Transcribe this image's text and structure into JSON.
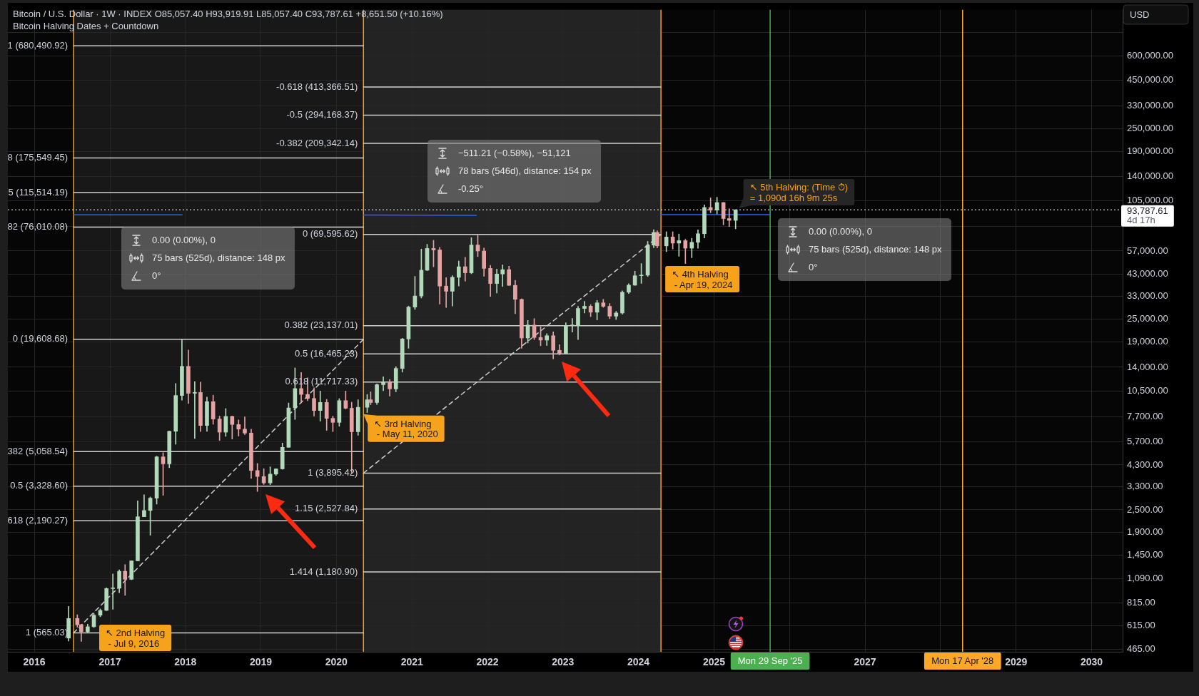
{
  "chart_data": {
    "type": "candlestick",
    "title": "Bitcoin / U.S. Dollar · 1W · INDEX O85,057.40 H93,919.91 L85,057.40 C93,787.61 +8,651.50 (+10.16%)",
    "subtitle": "Bitcoin Halving Dates + Countdown",
    "ylabel": "USD",
    "x": [
      "2016-06-15",
      "2016-07-27",
      "2016-08-15",
      "2016-09-15",
      "2016-10-15",
      "2016-11-15",
      "2016-12-15",
      "2017-01-15",
      "2017-02-15",
      "2017-03-15",
      "2017-04-15",
      "2017-05-15",
      "2017-06-15",
      "2017-07-15",
      "2017-08-15",
      "2017-09-15",
      "2017-10-15",
      "2017-11-15",
      "2017-12-15",
      "2018-01-15",
      "2018-02-15",
      "2018-03-15",
      "2018-04-15",
      "2018-05-15",
      "2018-06-15",
      "2018-07-15",
      "2018-08-15",
      "2018-09-15",
      "2018-10-15",
      "2018-11-15",
      "2018-12-15",
      "2019-01-15",
      "2019-02-15",
      "2019-03-15",
      "2019-04-15",
      "2019-05-15",
      "2019-06-15",
      "2019-07-15",
      "2019-08-15",
      "2019-09-15",
      "2019-10-15",
      "2019-11-15",
      "2019-12-15",
      "2020-01-15",
      "2020-02-15",
      "2020-03-15",
      "2020-04-15",
      "2020-05-29",
      "2020-06-15",
      "2020-07-15",
      "2020-08-15",
      "2020-09-15",
      "2020-10-15",
      "2020-11-15",
      "2020-12-15",
      "2021-01-15",
      "2021-02-15",
      "2021-03-15",
      "2021-04-15",
      "2021-05-15",
      "2021-06-15",
      "2021-07-15",
      "2021-08-15",
      "2021-09-15",
      "2021-10-15",
      "2021-11-15",
      "2021-12-15",
      "2022-01-15",
      "2022-02-15",
      "2022-03-15",
      "2022-04-15",
      "2022-05-15",
      "2022-06-15",
      "2022-07-15",
      "2022-08-15",
      "2022-09-15",
      "2022-10-15",
      "2022-11-15",
      "2022-12-15",
      "2023-01-15",
      "2023-02-15",
      "2023-03-15",
      "2023-04-15",
      "2023-05-15",
      "2023-06-15",
      "2023-07-15",
      "2023-08-15",
      "2023-09-15",
      "2023-10-15",
      "2023-11-15",
      "2023-12-15",
      "2024-01-15",
      "2024-02-15",
      "2024-03-15",
      "2024-04-01",
      "2024-05-15",
      "2024-06-15",
      "2024-07-15",
      "2024-08-15",
      "2024-09-15",
      "2024-10-15",
      "2024-11-15",
      "2024-12-15",
      "2025-01-15",
      "2025-02-15",
      "2025-03-15",
      "2025-04-15"
    ],
    "ohlc": [
      [
        531,
        778,
        512,
        673
      ],
      [
        673,
        704,
        606,
        624
      ],
      [
        624,
        626,
        510,
        573
      ],
      [
        573,
        628,
        567,
        609
      ],
      [
        609,
        714,
        604,
        700
      ],
      [
        700,
        755,
        687,
        742
      ],
      [
        742,
        975,
        740,
        966
      ],
      [
        966,
        1153,
        752,
        970
      ],
      [
        970,
        1210,
        918,
        1190
      ],
      [
        1190,
        1290,
        890,
        1080
      ],
      [
        1080,
        1350,
        1075,
        1350
      ],
      [
        1350,
        2790,
        1350,
        2300
      ],
      [
        2300,
        3000,
        2300,
        2480
      ],
      [
        2480,
        2920,
        1840,
        2880
      ],
      [
        2880,
        4780,
        2680,
        4740
      ],
      [
        4740,
        4990,
        2980,
        4360
      ],
      [
        4360,
        6470,
        4160,
        6460
      ],
      [
        6460,
        11500,
        5520,
        9950
      ],
      [
        9950,
        19600,
        9400,
        14150
      ],
      [
        14150,
        17250,
        9035,
        10220
      ],
      [
        10220,
        11780,
        5920,
        10325
      ],
      [
        10325,
        11700,
        6430,
        6925
      ],
      [
        6925,
        9760,
        6450,
        9240
      ],
      [
        9240,
        9990,
        7030,
        7490
      ],
      [
        7490,
        7760,
        5780,
        6390
      ],
      [
        6390,
        8500,
        6070,
        7730
      ],
      [
        7730,
        7760,
        5880,
        7010
      ],
      [
        7010,
        7410,
        6100,
        6630
      ],
      [
        6630,
        7680,
        6200,
        6320
      ],
      [
        6320,
        6620,
        3650,
        4020
      ],
      [
        4020,
        4380,
        3120,
        3740
      ],
      [
        3740,
        4110,
        3400,
        3460
      ],
      [
        3460,
        4200,
        3390,
        3850
      ],
      [
        3850,
        4110,
        3790,
        4100
      ],
      [
        4100,
        5600,
        4080,
        5320
      ],
      [
        5320,
        9090,
        5320,
        8560
      ],
      [
        8560,
        13880,
        7450,
        10820
      ],
      [
        10820,
        13130,
        9110,
        10080
      ],
      [
        10080,
        12330,
        9350,
        9600
      ],
      [
        9600,
        10920,
        7760,
        8300
      ],
      [
        8300,
        10500,
        7300,
        9150
      ],
      [
        9150,
        9500,
        6530,
        7550
      ],
      [
        7550,
        7750,
        6430,
        7190
      ],
      [
        7190,
        9580,
        6860,
        9350
      ],
      [
        9350,
        10500,
        8460,
        8530
      ],
      [
        8530,
        9180,
        3895,
        6420
      ],
      [
        6420,
        9450,
        6150,
        8630
      ],
      [
        8630,
        10080,
        8100,
        9450
      ],
      [
        9450,
        10400,
        8900,
        9140
      ],
      [
        9140,
        11450,
        8920,
        11340
      ],
      [
        11340,
        12470,
        10540,
        11650
      ],
      [
        11650,
        12080,
        9880,
        10780
      ],
      [
        10780,
        14100,
        10400,
        13800
      ],
      [
        13800,
        19870,
        13200,
        19700
      ],
      [
        19700,
        29300,
        17600,
        28950
      ],
      [
        28950,
        41950,
        28130,
        33100
      ],
      [
        33100,
        58350,
        32300,
        45200
      ],
      [
        45200,
        61800,
        45000,
        58800
      ],
      [
        58800,
        64900,
        47100,
        57750
      ],
      [
        57750,
        59600,
        30000,
        37300
      ],
      [
        37300,
        41300,
        28800,
        35050
      ],
      [
        35050,
        42300,
        29300,
        41500
      ],
      [
        41500,
        50500,
        37330,
        47130
      ],
      [
        47130,
        52900,
        39600,
        43800
      ],
      [
        43800,
        67000,
        43300,
        61300
      ],
      [
        61300,
        69000,
        53300,
        57000
      ],
      [
        57000,
        59100,
        42000,
        46200
      ],
      [
        46200,
        47990,
        32950,
        38480
      ],
      [
        38480,
        45850,
        34300,
        43180
      ],
      [
        43180,
        48200,
        37150,
        45510
      ],
      [
        45510,
        47450,
        37600,
        37650
      ],
      [
        37650,
        40000,
        26700,
        31800
      ],
      [
        31800,
        31950,
        17600,
        19930
      ],
      [
        19930,
        24650,
        18780,
        23300
      ],
      [
        23300,
        25200,
        19550,
        20050
      ],
      [
        20050,
        22800,
        18150,
        19430
      ],
      [
        19430,
        21000,
        18200,
        20490
      ],
      [
        20490,
        21480,
        15480,
        17170
      ],
      [
        17170,
        18370,
        16260,
        16550
      ],
      [
        16550,
        23950,
        16500,
        23130
      ],
      [
        23130,
        25250,
        21400,
        23150
      ],
      [
        23150,
        29200,
        19550,
        28470
      ],
      [
        28470,
        31000,
        26940,
        29250
      ],
      [
        29250,
        29820,
        25800,
        27220
      ],
      [
        27220,
        31400,
        24800,
        30470
      ],
      [
        30470,
        31800,
        28860,
        29230
      ],
      [
        29230,
        30230,
        25170,
        25940
      ],
      [
        25940,
        27490,
        24920,
        26960
      ],
      [
        26960,
        35200,
        26560,
        34650
      ],
      [
        34650,
        38420,
        34100,
        37720
      ],
      [
        37720,
        44700,
        37620,
        42280
      ],
      [
        42280,
        48970,
        38550,
        42580
      ],
      [
        42580,
        64000,
        41880,
        61180
      ],
      [
        61180,
        73800,
        59300,
        71330
      ],
      [
        71330,
        72800,
        59200,
        60640
      ],
      [
        60640,
        71950,
        56550,
        67500
      ],
      [
        67500,
        71950,
        58400,
        62700
      ],
      [
        62700,
        70000,
        53500,
        64600
      ],
      [
        64600,
        65650,
        49000,
        58970
      ],
      [
        58970,
        66500,
        52550,
        63330
      ],
      [
        63330,
        73620,
        58900,
        70220
      ],
      [
        70220,
        99600,
        66800,
        96400
      ],
      [
        96400,
        108300,
        90500,
        93400
      ],
      [
        93400,
        109100,
        89200,
        102400
      ],
      [
        102400,
        102500,
        78200,
        84350
      ],
      [
        84350,
        95000,
        76600,
        82540
      ],
      [
        82540,
        93919.91,
        74500,
        93787.61
      ]
    ],
    "series": [
      {
        "type": "line",
        "name": "1 (680,490.92)",
        "x": [
          "2016-07-09",
          "2020-05-11"
        ],
        "values": [
          680490.92,
          680490.92
        ],
        "color": "#cfcfcf"
      },
      {
        "type": "line",
        "name": "8 (175,549.45)",
        "x": [
          "2016-07-09",
          "2020-05-11"
        ],
        "values": [
          175549.45,
          175549.45
        ],
        "color": "#cfcfcf"
      },
      {
        "type": "line",
        "name": "5 (115,514.19)",
        "x": [
          "2016-07-09",
          "2020-05-11"
        ],
        "values": [
          115514.19,
          115514.19
        ],
        "color": "#cfcfcf"
      },
      {
        "type": "line",
        "name": "82 (76,010.08)",
        "x": [
          "2016-07-09",
          "2020-05-11"
        ],
        "values": [
          76010.08,
          76010.08
        ],
        "color": "#cfcfcf"
      },
      {
        "type": "line",
        "name": "0 (19,608.68)",
        "x": [
          "2016-07-09",
          "2020-05-11"
        ],
        "values": [
          19608.68,
          19608.68
        ],
        "color": "#cfcfcf"
      },
      {
        "type": "line",
        "name": "382 (5,058.54)",
        "x": [
          "2016-07-09",
          "2020-05-11"
        ],
        "values": [
          5058.54,
          5058.54
        ],
        "color": "#cfcfcf"
      },
      {
        "type": "line",
        "name": "0.5 (3,328.60)",
        "x": [
          "2016-07-09",
          "2020-05-11"
        ],
        "values": [
          3328.6,
          3328.6
        ],
        "color": "#cfcfcf"
      },
      {
        "type": "line",
        "name": "618 (2,190.27)",
        "x": [
          "2016-07-09",
          "2020-05-11"
        ],
        "values": [
          2190.27,
          2190.27
        ],
        "color": "#cfcfcf"
      },
      {
        "type": "line",
        "name": "1 (565.03)",
        "x": [
          "2016-07-09",
          "2020-05-11"
        ],
        "values": [
          565.03,
          565.03
        ],
        "color": "#cfcfcf"
      },
      {
        "type": "line",
        "x": [
          "2016-07-09",
          "2020-05-11"
        ],
        "values": [
          565.03,
          19608.68
        ],
        "color": "#cfcfcf",
        "line_style": "dashed"
      },
      {
        "type": "line",
        "name": "-0.618 (413,366.51)",
        "x": [
          "2020-05-11",
          "2024-04-19"
        ],
        "values": [
          413366.51,
          413366.51
        ],
        "color": "#cfcfcf"
      },
      {
        "type": "line",
        "name": "-0.5 (294,168.37)",
        "x": [
          "2020-05-11",
          "2024-04-19"
        ],
        "values": [
          294168.37,
          294168.37
        ],
        "color": "#cfcfcf"
      },
      {
        "type": "line",
        "name": "-0.382 (209,342.14)",
        "x": [
          "2020-05-11",
          "2024-04-19"
        ],
        "values": [
          209342.14,
          209342.14
        ],
        "color": "#cfcfcf"
      },
      {
        "type": "line",
        "name": "0 (69,595.62)",
        "x": [
          "2020-05-11",
          "2024-04-19"
        ],
        "values": [
          69595.62,
          69595.62
        ],
        "color": "#cfcfcf"
      },
      {
        "type": "line",
        "name": "0.382 (23,137.01)",
        "x": [
          "2020-05-11",
          "2024-04-19"
        ],
        "values": [
          23137.01,
          23137.01
        ],
        "color": "#cfcfcf"
      },
      {
        "type": "line",
        "name": "0.5 (16,465.23)",
        "x": [
          "2020-05-11",
          "2024-04-19"
        ],
        "values": [
          16465.23,
          16465.23
        ],
        "color": "#cfcfcf"
      },
      {
        "type": "line",
        "name": "0.618 (11,717.33)",
        "x": [
          "2020-05-11",
          "2024-04-19"
        ],
        "values": [
          11717.33,
          11717.33
        ],
        "color": "#cfcfcf"
      },
      {
        "type": "line",
        "name": "1 (3,895.42)",
        "x": [
          "2020-05-11",
          "2024-04-19"
        ],
        "values": [
          3895.42,
          3895.42
        ],
        "color": "#cfcfcf"
      },
      {
        "type": "line",
        "name": "1.15 (2,527.84)",
        "x": [
          "2020-05-11",
          "2024-04-19"
        ],
        "values": [
          2527.84,
          2527.84
        ],
        "color": "#cfcfcf"
      },
      {
        "type": "line",
        "name": "1.414 (1,180.90)",
        "x": [
          "2020-05-11",
          "2024-04-19"
        ],
        "values": [
          1180.9,
          1180.9
        ],
        "color": "#cfcfcf"
      },
      {
        "type": "line",
        "x": [
          "2020-05-11",
          "2024-04-19"
        ],
        "values": [
          3895.42,
          69595.62
        ],
        "color": "#cfcfcf",
        "line_style": "dashed"
      },
      {
        "type": "line",
        "x": [
          "2016-07-09",
          "2017-12-16"
        ],
        "values": [
          88300,
          88300
        ],
        "color": "#2962ff"
      },
      {
        "type": "line",
        "x": [
          "2020-05-11",
          "2021-11-08"
        ],
        "values": [
          88140,
          87629
        ],
        "color": "#2962ff"
      },
      {
        "type": "line",
        "x": [
          "2024-04-19",
          "2025-09-26"
        ],
        "values": [
          88500,
          88500
        ],
        "color": "#2962ff"
      }
    ],
    "xlim": [
      "2015-08-26",
      "2030-05-31"
    ],
    "xticks": [
      "2016",
      "2017",
      "2018",
      "2019",
      "2020",
      "2021",
      "2022",
      "2023",
      "2024",
      "2025",
      {
        "value": "2026",
        "label": null
      },
      "2027",
      {
        "value": "2028",
        "label": null
      },
      "2029",
      "2030"
    ],
    "ylim": [
      450,
      1050000
    ],
    "yticks": [
      {
        "value": 465,
        "label": "465.00"
      },
      {
        "value": 615,
        "label": "615.00"
      },
      {
        "value": 815,
        "label": "815.00"
      },
      {
        "value": 1090,
        "label": "1,090.00"
      },
      {
        "value": 1450,
        "label": "1,450.00"
      },
      {
        "value": 1900,
        "label": "1,900.00"
      },
      {
        "value": 2500,
        "label": "2,500.00"
      },
      {
        "value": 3300,
        "label": "3,300.00"
      },
      {
        "value": 4300,
        "label": "4,300.00"
      },
      {
        "value": 5700,
        "label": "5,700.00"
      },
      {
        "value": 7700,
        "label": "7,700.00"
      },
      {
        "value": 10500,
        "label": "10,500.00"
      },
      {
        "value": 14000,
        "label": "14,000.00"
      },
      {
        "value": 19000,
        "label": "19,000.00"
      },
      {
        "value": 25000,
        "label": "25,000.00"
      },
      {
        "value": 33000,
        "label": "33,000.00"
      },
      {
        "value": 43000,
        "label": "43,000.00"
      },
      {
        "value": 57000,
        "label": "57,000.00"
      },
      {
        "value": 77000,
        "label": null
      },
      {
        "value": 105000,
        "label": "105,000.00"
      },
      {
        "value": 140000,
        "label": "140,000.00"
      },
      {
        "value": 190000,
        "label": "190,000.00"
      },
      {
        "value": 250000,
        "label": "250,000.00"
      },
      {
        "value": 330000,
        "label": "330,000.00"
      },
      {
        "value": 450000,
        "label": "450,000.00"
      },
      {
        "value": 600000,
        "label": "600,000.00"
      },
      {
        "value": 800000,
        "label": null
      }
    ],
    "log": true,
    "grid": true,
    "bands": [
      {
        "axis": "x",
        "from": "2016-07-09",
        "to": "2020-05-11",
        "color": "#181818"
      },
      {
        "axis": "x",
        "from": "2020-05-11",
        "to": "2024-04-19",
        "color": "#232323"
      }
    ],
    "ref_lines": [
      {
        "axis": "x",
        "value": "2016-07-09",
        "color": "#f59e1b"
      },
      {
        "axis": "x",
        "value": "2020-05-11",
        "color": "#f59e1b"
      },
      {
        "axis": "x",
        "value": "2024-04-19",
        "color": "#f59e1b"
      },
      {
        "axis": "x",
        "value": "2025-09-29",
        "label": "Mon 29 Sep '25",
        "color": "#4caf50"
      },
      {
        "axis": "x",
        "value": "2028-04-17",
        "label": "Mon 17 Apr '28",
        "color": "#ffa726"
      },
      {
        "axis": "y",
        "value": 93787.61,
        "label": "93,787.61\n4d 17h",
        "color": "#ffffff",
        "line_style": "dotted"
      }
    ],
    "annotations": [
      "0.00 (0.00%), 0\n75 bars (525d), distance: 148 px\n0°",
      "−511.21 (−0.58%), −51,121\n78 bars (546d), distance: 154 px\n-0.25°",
      "0.00 (0.00%), 0\n75 bars (525d), distance: 148 px\n0°",
      "↖ 5th Halving: (Time ⏱)\n= 1,090d 16h 9m 25s",
      "↖ 2nd Halving\n - Jul 9, 2016",
      {
        "text": "↖ 3rd Halving\n - May 11, 2020",
        "x": "2020-05-11",
        "y": 7950
      },
      {
        "text": "↖ 4th Halving\n - Apr 19, 2024",
        "x": "2024-04-19",
        "y": 60500
      }
    ]
  }
}
